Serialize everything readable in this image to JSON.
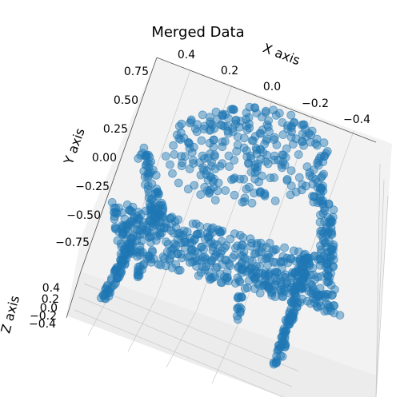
{
  "chart_data": {
    "type": "scatter",
    "projection": "3d",
    "title": "Merged Data",
    "xlabel": "X axis",
    "ylabel": "Y axis",
    "zlabel": "Z axis",
    "x_ticks": [
      "0.4",
      "0.2",
      "0.0",
      "−0.2",
      "−0.4"
    ],
    "y_ticks": [
      "0.75",
      "0.50",
      "0.25",
      "0.00",
      "−0.25",
      "−0.50",
      "−0.75"
    ],
    "z_ticks": [
      "0.4",
      "0.2",
      "0.0",
      "−0.2",
      "−0.4"
    ],
    "x_range": [
      -0.5,
      0.5
    ],
    "y_range": [
      -0.85,
      0.85
    ],
    "z_range": [
      -0.45,
      0.45
    ],
    "grid": true,
    "series": [
      {
        "color": "#1f77b4",
        "marker_alpha": 0.45,
        "description_of_shape": "point cloud of a chair",
        "parts": [
          {
            "part": "backrest",
            "x": [
              -0.3,
              0.22
            ],
            "y": [
              0.0,
              0.55
            ],
            "z": [
              0.1,
              0.3
            ]
          },
          {
            "part": "seat",
            "x": [
              -0.42,
              0.42
            ],
            "y": [
              -0.55,
              -0.35
            ],
            "z": [
              -0.05,
              0.05
            ]
          },
          {
            "part": "front-left-leg",
            "x": [
              0.38,
              0.42
            ],
            "y": [
              -0.8,
              -0.5
            ],
            "z": [
              -0.4,
              0.0
            ]
          },
          {
            "part": "front-right-leg",
            "x": [
              -0.42,
              -0.38
            ],
            "y": [
              -0.8,
              -0.5
            ],
            "z": [
              -0.4,
              0.0
            ]
          },
          {
            "part": "left-armrest",
            "x": [
              0.3,
              0.42
            ],
            "y": [
              -0.5,
              0.0
            ],
            "z": [
              0.0,
              0.3
            ]
          },
          {
            "part": "right-armrest",
            "x": [
              -0.42,
              -0.3
            ],
            "y": [
              -0.5,
              0.0
            ],
            "z": [
              0.0,
              0.3
            ]
          }
        ]
      }
    ]
  }
}
